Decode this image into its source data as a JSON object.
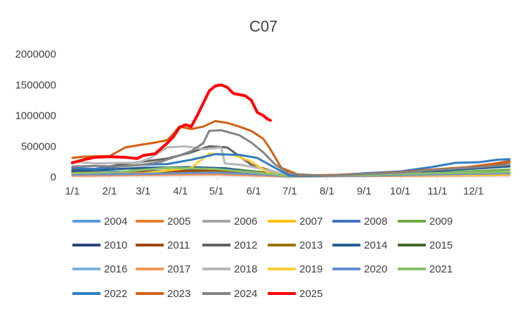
{
  "chart_data": {
    "type": "line",
    "title": "C07",
    "xlabel": "",
    "ylabel": "",
    "ylim": [
      0,
      2000000
    ],
    "yticks": [
      "0",
      "500000",
      "1000000",
      "1500000",
      "2000000"
    ],
    "ytick_values": [
      0,
      500000,
      1000000,
      1500000,
      2000000
    ],
    "xlim": [
      1,
      365
    ],
    "xtick_labels": [
      "1/1",
      "2/1",
      "3/1",
      "4/1",
      "5/1",
      "6/1",
      "7/1",
      "8/1",
      "9/1",
      "10/1",
      "11/1",
      "12/1"
    ],
    "xtick_days": [
      1,
      32,
      60,
      91,
      121,
      152,
      182,
      213,
      244,
      274,
      305,
      335
    ],
    "grid": false,
    "legend_position": "bottom",
    "series": [
      {
        "name": "2004",
        "color": "#5B9BD5",
        "width": 3,
        "points": [
          [
            1,
            40000
          ],
          [
            60,
            50000
          ],
          [
            120,
            70000
          ],
          [
            160,
            40000
          ],
          [
            182,
            10000
          ],
          [
            213,
            20000
          ],
          [
            244,
            30000
          ],
          [
            300,
            40000
          ],
          [
            365,
            50000
          ]
        ]
      },
      {
        "name": "2005",
        "color": "#ED7D31",
        "width": 3,
        "points": [
          [
            1,
            30000
          ],
          [
            60,
            40000
          ],
          [
            120,
            60000
          ],
          [
            160,
            30000
          ],
          [
            182,
            10000
          ],
          [
            213,
            15000
          ],
          [
            244,
            20000
          ],
          [
            300,
            30000
          ],
          [
            365,
            40000
          ]
        ]
      },
      {
        "name": "2006",
        "color": "#A5A5A5",
        "width": 3,
        "points": [
          [
            1,
            50000
          ],
          [
            60,
            60000
          ],
          [
            110,
            100000
          ],
          [
            150,
            60000
          ],
          [
            182,
            10000
          ],
          [
            213,
            20000
          ],
          [
            244,
            30000
          ],
          [
            300,
            50000
          ],
          [
            365,
            60000
          ]
        ]
      },
      {
        "name": "2007",
        "color": "#FFC000",
        "width": 3,
        "points": [
          [
            1,
            60000
          ],
          [
            60,
            70000
          ],
          [
            100,
            150000
          ],
          [
            140,
            120000
          ],
          [
            170,
            30000
          ],
          [
            190,
            10000
          ],
          [
            244,
            20000
          ],
          [
            300,
            30000
          ],
          [
            365,
            40000
          ]
        ]
      },
      {
        "name": "2008",
        "color": "#4472C4",
        "width": 3,
        "points": [
          [
            1,
            80000
          ],
          [
            60,
            90000
          ],
          [
            110,
            120000
          ],
          [
            150,
            80000
          ],
          [
            182,
            20000
          ],
          [
            213,
            20000
          ],
          [
            244,
            40000
          ],
          [
            300,
            60000
          ],
          [
            365,
            70000
          ]
        ]
      },
      {
        "name": "2009",
        "color": "#70AD47",
        "width": 3,
        "points": [
          [
            1,
            50000
          ],
          [
            40,
            60000
          ],
          [
            60,
            150000
          ],
          [
            90,
            140000
          ],
          [
            130,
            130000
          ],
          [
            160,
            80000
          ],
          [
            182,
            20000
          ],
          [
            244,
            30000
          ],
          [
            300,
            60000
          ],
          [
            365,
            120000
          ]
        ]
      },
      {
        "name": "2010",
        "color": "#264478",
        "width": 3,
        "points": [
          [
            1,
            60000
          ],
          [
            60,
            80000
          ],
          [
            120,
            100000
          ],
          [
            160,
            60000
          ],
          [
            182,
            15000
          ],
          [
            244,
            25000
          ],
          [
            300,
            50000
          ],
          [
            365,
            80000
          ]
        ]
      },
      {
        "name": "2011",
        "color": "#9E480E",
        "width": 3,
        "points": [
          [
            1,
            70000
          ],
          [
            60,
            80000
          ],
          [
            120,
            110000
          ],
          [
            160,
            70000
          ],
          [
            182,
            20000
          ],
          [
            244,
            40000
          ],
          [
            280,
            80000
          ],
          [
            320,
            130000
          ],
          [
            365,
            240000
          ]
        ]
      },
      {
        "name": "2012",
        "color": "#636363",
        "width": 3,
        "points": [
          [
            1,
            120000
          ],
          [
            20,
            130000
          ],
          [
            40,
            200000
          ],
          [
            60,
            250000
          ],
          [
            80,
            300000
          ],
          [
            100,
            400000
          ],
          [
            115,
            500000
          ],
          [
            130,
            480000
          ],
          [
            150,
            200000
          ],
          [
            170,
            80000
          ],
          [
            182,
            20000
          ],
          [
            213,
            20000
          ],
          [
            244,
            40000
          ],
          [
            300,
            100000
          ],
          [
            340,
            180000
          ],
          [
            365,
            260000
          ]
        ]
      },
      {
        "name": "2013",
        "color": "#997300",
        "width": 3,
        "points": [
          [
            1,
            40000
          ],
          [
            60,
            50000
          ],
          [
            120,
            80000
          ],
          [
            160,
            40000
          ],
          [
            182,
            10000
          ],
          [
            244,
            20000
          ],
          [
            300,
            30000
          ],
          [
            365,
            40000
          ]
        ]
      },
      {
        "name": "2014",
        "color": "#255E91",
        "width": 3,
        "points": [
          [
            1,
            100000
          ],
          [
            30,
            120000
          ],
          [
            60,
            150000
          ],
          [
            100,
            160000
          ],
          [
            130,
            140000
          ],
          [
            160,
            60000
          ],
          [
            182,
            20000
          ],
          [
            244,
            30000
          ],
          [
            300,
            90000
          ],
          [
            340,
            140000
          ],
          [
            365,
            170000
          ]
        ]
      },
      {
        "name": "2015",
        "color": "#43682B",
        "width": 3,
        "points": [
          [
            1,
            30000
          ],
          [
            60,
            40000
          ],
          [
            120,
            60000
          ],
          [
            160,
            30000
          ],
          [
            182,
            10000
          ],
          [
            244,
            20000
          ],
          [
            300,
            30000
          ],
          [
            365,
            40000
          ]
        ]
      },
      {
        "name": "2016",
        "color": "#7CAFDD",
        "width": 3,
        "points": [
          [
            1,
            30000
          ],
          [
            60,
            50000
          ],
          [
            120,
            60000
          ],
          [
            160,
            40000
          ],
          [
            182,
            10000
          ],
          [
            244,
            20000
          ],
          [
            300,
            40000
          ],
          [
            365,
            50000
          ]
        ]
      },
      {
        "name": "2017",
        "color": "#F1975A",
        "width": 3,
        "points": [
          [
            1,
            20000
          ],
          [
            60,
            30000
          ],
          [
            120,
            40000
          ],
          [
            160,
            20000
          ],
          [
            182,
            5000
          ],
          [
            244,
            15000
          ],
          [
            300,
            20000
          ],
          [
            365,
            30000
          ]
        ]
      },
      {
        "name": "2018",
        "color": "#B7B7B7",
        "width": 3,
        "points": [
          [
            1,
            250000
          ],
          [
            20,
            220000
          ],
          [
            40,
            230000
          ],
          [
            55,
            230000
          ],
          [
            65,
            300000
          ],
          [
            80,
            480000
          ],
          [
            95,
            500000
          ],
          [
            110,
            450000
          ],
          [
            125,
            480000
          ],
          [
            128,
            220000
          ],
          [
            140,
            200000
          ],
          [
            155,
            150000
          ],
          [
            170,
            80000
          ],
          [
            182,
            20000
          ],
          [
            213,
            20000
          ],
          [
            244,
            30000
          ],
          [
            300,
            60000
          ],
          [
            365,
            80000
          ]
        ]
      },
      {
        "name": "2019",
        "color": "#FFCD33",
        "width": 3,
        "points": [
          [
            1,
            40000
          ],
          [
            60,
            60000
          ],
          [
            100,
            150000
          ],
          [
            115,
            380000
          ],
          [
            135,
            360000
          ],
          [
            150,
            250000
          ],
          [
            165,
            60000
          ],
          [
            182,
            10000
          ],
          [
            244,
            20000
          ],
          [
            300,
            30000
          ],
          [
            365,
            40000
          ]
        ]
      },
      {
        "name": "2020",
        "color": "#698ED0",
        "width": 3,
        "points": [
          [
            1,
            40000
          ],
          [
            60,
            50000
          ],
          [
            120,
            70000
          ],
          [
            160,
            40000
          ],
          [
            182,
            10000
          ],
          [
            244,
            20000
          ],
          [
            300,
            40000
          ],
          [
            365,
            60000
          ]
        ]
      },
      {
        "name": "2021",
        "color": "#8CC168",
        "width": 3,
        "points": [
          [
            1,
            60000
          ],
          [
            40,
            80000
          ],
          [
            80,
            150000
          ],
          [
            120,
            130000
          ],
          [
            160,
            60000
          ],
          [
            182,
            15000
          ],
          [
            244,
            30000
          ],
          [
            300,
            60000
          ],
          [
            365,
            80000
          ]
        ]
      },
      {
        "name": "2022",
        "color": "#327DC2",
        "width": 3,
        "points": [
          [
            1,
            150000
          ],
          [
            20,
            130000
          ],
          [
            40,
            170000
          ],
          [
            60,
            200000
          ],
          [
            80,
            210000
          ],
          [
            100,
            280000
          ],
          [
            120,
            370000
          ],
          [
            140,
            360000
          ],
          [
            155,
            310000
          ],
          [
            165,
            200000
          ],
          [
            182,
            20000
          ],
          [
            213,
            20000
          ],
          [
            244,
            60000
          ],
          [
            274,
            90000
          ],
          [
            300,
            160000
          ],
          [
            320,
            230000
          ],
          [
            340,
            240000
          ],
          [
            355,
            280000
          ],
          [
            365,
            290000
          ]
        ]
      },
      {
        "name": "2023",
        "color": "#D26012",
        "width": 3,
        "points": [
          [
            1,
            310000
          ],
          [
            10,
            330000
          ],
          [
            32,
            340000
          ],
          [
            45,
            480000
          ],
          [
            60,
            530000
          ],
          [
            70,
            560000
          ],
          [
            80,
            600000
          ],
          [
            85,
            700000
          ],
          [
            90,
            820000
          ],
          [
            100,
            780000
          ],
          [
            110,
            820000
          ],
          [
            120,
            910000
          ],
          [
            130,
            880000
          ],
          [
            140,
            820000
          ],
          [
            150,
            750000
          ],
          [
            160,
            620000
          ],
          [
            165,
            480000
          ],
          [
            175,
            150000
          ],
          [
            190,
            30000
          ],
          [
            213,
            30000
          ],
          [
            244,
            50000
          ],
          [
            274,
            80000
          ],
          [
            300,
            120000
          ],
          [
            330,
            160000
          ],
          [
            365,
            250000
          ]
        ]
      },
      {
        "name": "2024",
        "color": "#848484",
        "width": 3,
        "points": [
          [
            1,
            170000
          ],
          [
            20,
            180000
          ],
          [
            40,
            170000
          ],
          [
            60,
            200000
          ],
          [
            75,
            250000
          ],
          [
            90,
            350000
          ],
          [
            100,
            420000
          ],
          [
            110,
            550000
          ],
          [
            115,
            750000
          ],
          [
            125,
            760000
          ],
          [
            140,
            680000
          ],
          [
            150,
            560000
          ],
          [
            160,
            400000
          ],
          [
            170,
            200000
          ],
          [
            182,
            50000
          ],
          [
            213,
            20000
          ],
          [
            244,
            50000
          ],
          [
            274,
            70000
          ],
          [
            300,
            110000
          ],
          [
            340,
            160000
          ],
          [
            365,
            200000
          ]
        ]
      },
      {
        "name": "2025",
        "color": "#FF0000",
        "width": 4,
        "points": [
          [
            1,
            230000
          ],
          [
            10,
            280000
          ],
          [
            20,
            320000
          ],
          [
            32,
            330000
          ],
          [
            45,
            320000
          ],
          [
            55,
            300000
          ],
          [
            60,
            350000
          ],
          [
            70,
            380000
          ],
          [
            80,
            550000
          ],
          [
            85,
            650000
          ],
          [
            90,
            800000
          ],
          [
            95,
            850000
          ],
          [
            100,
            820000
          ],
          [
            105,
            1000000
          ],
          [
            110,
            1200000
          ],
          [
            115,
            1400000
          ],
          [
            120,
            1480000
          ],
          [
            125,
            1500000
          ],
          [
            130,
            1460000
          ],
          [
            135,
            1360000
          ],
          [
            145,
            1320000
          ],
          [
            150,
            1250000
          ],
          [
            155,
            1050000
          ],
          [
            160,
            1000000
          ],
          [
            163,
            950000
          ],
          [
            166,
            920000
          ]
        ]
      }
    ]
  }
}
